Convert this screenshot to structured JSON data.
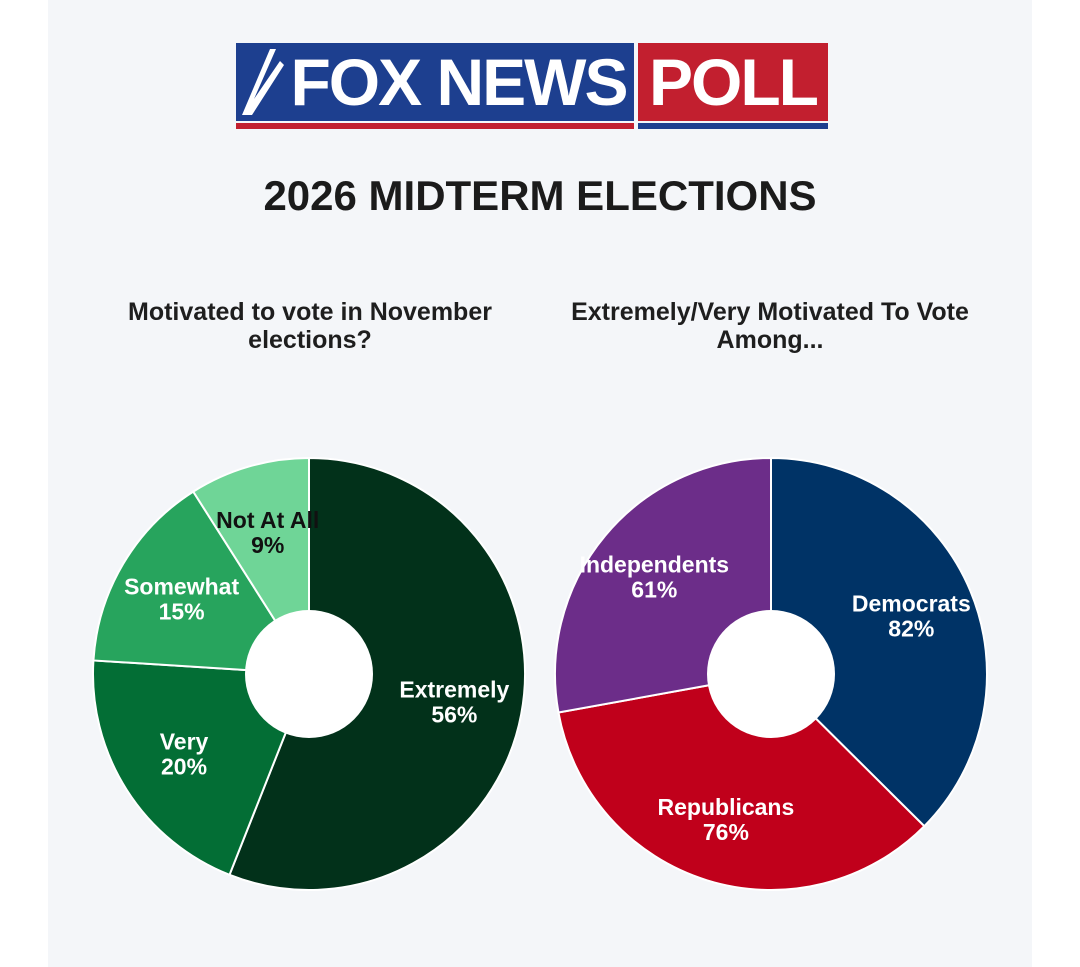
{
  "logo": {
    "brand": "FOX NEWS",
    "tag": "POLL"
  },
  "title": "2026 MIDTERM ELECTIONS",
  "chart_data": [
    {
      "type": "pie",
      "title": "Motivated to vote in November elections?",
      "categories": [
        "Extremely",
        "Very",
        "Somewhat",
        "Not At All"
      ],
      "values": [
        56,
        20,
        15,
        9
      ],
      "labels": [
        "56%",
        "20%",
        "15%",
        "9%"
      ],
      "colors": [
        "#02311a",
        "#036e35",
        "#27a45d",
        "#6fd597"
      ],
      "label_colors": [
        "#ffffff",
        "#ffffff",
        "#ffffff",
        "#111111"
      ]
    },
    {
      "type": "pie",
      "title": "Extremely/Very Motivated To Vote Among...",
      "categories": [
        "Democrats",
        "Republicans",
        "Independents"
      ],
      "values": [
        82,
        76,
        61
      ],
      "labels": [
        "82%",
        "76%",
        "61%"
      ],
      "colors": [
        "#003366",
        "#c0001b",
        "#6c2d89"
      ],
      "label_colors": [
        "#ffffff",
        "#ffffff",
        "#ffffff"
      ]
    }
  ]
}
